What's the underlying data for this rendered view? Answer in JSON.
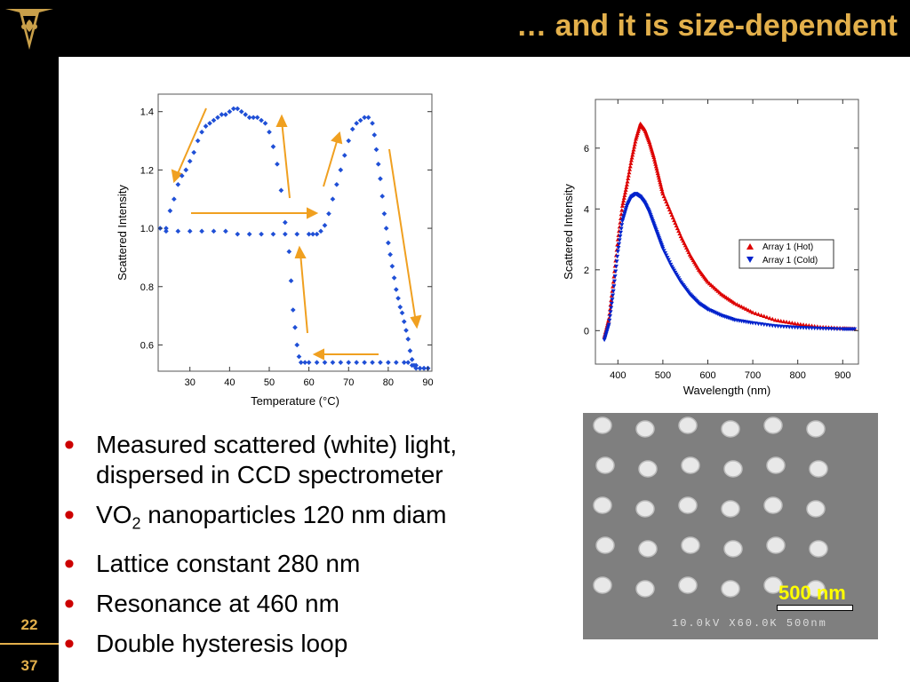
{
  "slide": {
    "title": "… and it is size-dependent",
    "page_numbers": [
      "22",
      "37"
    ]
  },
  "bullets": [
    {
      "text": "Measured scattered (white) light, dispersed in CCD spectrometer"
    },
    {
      "pre": "VO",
      "sub": "2",
      "post": " nanoparticles 120 nm diam"
    },
    {
      "text": "Lattice constant 280 nm"
    },
    {
      "text": "Resonance at 460 nm"
    },
    {
      "text": "Double hysteresis loop"
    }
  ],
  "sem_image": {
    "scale_label": "500 nm",
    "instrument_text": "10.0kV X60.0K 500nm"
  },
  "colors": {
    "accent": "#e3b04b",
    "bullet": "#cc0000",
    "hot": "#dd0000",
    "cold": "#0022cc",
    "points": "#1f4fd6",
    "arrow": "#f0a020"
  },
  "chart_data": [
    {
      "type": "scatter",
      "xlabel": "Temperature (°C)",
      "ylabel": "Scattered Intensity",
      "xlim": [
        22,
        91
      ],
      "ylim": [
        0.51,
        1.46
      ],
      "xticks": [
        30,
        40,
        50,
        60,
        70,
        80,
        90
      ],
      "yticks": [
        0.6,
        0.8,
        1.0,
        1.2,
        1.4
      ],
      "ytick_labels": [
        "0.6",
        "0.8",
        "1.0",
        "1.2",
        "1.4"
      ],
      "series": [
        {
          "x": [
            22.5,
            24,
            25,
            26,
            27,
            28,
            29,
            30,
            31,
            32,
            33,
            34,
            35,
            36,
            37,
            38,
            39,
            40,
            41,
            42,
            43,
            44,
            45,
            46,
            47,
            48,
            49,
            50,
            51,
            52,
            53,
            54,
            55
          ],
          "y": [
            1.0,
            1.0,
            1.06,
            1.1,
            1.15,
            1.18,
            1.2,
            1.23,
            1.26,
            1.3,
            1.33,
            1.35,
            1.36,
            1.37,
            1.38,
            1.39,
            1.39,
            1.4,
            1.41,
            1.41,
            1.4,
            1.39,
            1.38,
            1.38,
            1.38,
            1.37,
            1.36,
            1.33,
            1.28,
            1.22,
            1.13,
            1.02,
            0.92
          ]
        },
        {
          "x": [
            55.5,
            56,
            56.5,
            57,
            57.5,
            58,
            59,
            60,
            62,
            64,
            66,
            68,
            70,
            72,
            74,
            76,
            78,
            80,
            82,
            84,
            85,
            86,
            87,
            88,
            89,
            90
          ],
          "y": [
            0.82,
            0.72,
            0.66,
            0.6,
            0.56,
            0.54,
            0.54,
            0.54,
            0.54,
            0.54,
            0.54,
            0.54,
            0.54,
            0.54,
            0.54,
            0.54,
            0.54,
            0.54,
            0.54,
            0.54,
            0.54,
            0.53,
            0.53,
            0.52,
            0.52,
            0.52
          ]
        },
        {
          "x": [
            24,
            27,
            30,
            33,
            36,
            39,
            42,
            45,
            48,
            51,
            54,
            57,
            60,
            61,
            62,
            63,
            64,
            65,
            66,
            67,
            68,
            69,
            70,
            71,
            72,
            73,
            74,
            75,
            76
          ],
          "y": [
            0.99,
            0.99,
            0.99,
            0.99,
            0.99,
            0.99,
            0.98,
            0.98,
            0.98,
            0.98,
            0.98,
            0.98,
            0.98,
            0.98,
            0.98,
            0.99,
            1.01,
            1.05,
            1.1,
            1.15,
            1.2,
            1.25,
            1.3,
            1.34,
            1.36,
            1.37,
            1.38,
            1.38,
            1.36
          ]
        },
        {
          "x": [
            76.5,
            77,
            77.5,
            78,
            78.5,
            79,
            79.5,
            80,
            80.5,
            81,
            81.5,
            82,
            82.5,
            83,
            83.5,
            84,
            84.5,
            85,
            85.5,
            86,
            86.5,
            87,
            88,
            89,
            90
          ],
          "y": [
            1.32,
            1.27,
            1.22,
            1.17,
            1.11,
            1.05,
            1.0,
            0.95,
            0.91,
            0.87,
            0.83,
            0.79,
            0.76,
            0.73,
            0.71,
            0.68,
            0.65,
            0.62,
            0.58,
            0.55,
            0.53,
            0.52,
            0.52,
            0.52,
            0.52
          ]
        }
      ]
    },
    {
      "type": "scatter",
      "xlabel": "Wavelength (nm)",
      "ylabel": "Scattered Intensity",
      "xlim": [
        350,
        935
      ],
      "ylim": [
        -1.1,
        7.6
      ],
      "xticks": [
        400,
        500,
        600,
        700,
        800,
        900
      ],
      "yticks": [
        0,
        2,
        4,
        6
      ],
      "legend": "right",
      "series": [
        {
          "name": "Array 1 (Hot)",
          "x": [
            370,
            380,
            390,
            400,
            410,
            420,
            430,
            440,
            450,
            460,
            470,
            480,
            490,
            500,
            520,
            540,
            560,
            580,
            600,
            630,
            660,
            700,
            750,
            800,
            850,
            900,
            930
          ],
          "y": [
            -0.2,
            0.4,
            1.6,
            3.0,
            4.1,
            4.8,
            5.6,
            6.3,
            6.8,
            6.6,
            6.2,
            5.7,
            5.1,
            4.5,
            3.8,
            3.1,
            2.5,
            2.0,
            1.6,
            1.2,
            0.9,
            0.6,
            0.35,
            0.22,
            0.12,
            0.08,
            0.06
          ]
        },
        {
          "name": "Array 1 (Cold)",
          "x": [
            370,
            380,
            390,
            400,
            410,
            420,
            430,
            440,
            450,
            460,
            470,
            480,
            490,
            500,
            520,
            540,
            560,
            580,
            600,
            630,
            660,
            700,
            750,
            800,
            850,
            900,
            930
          ],
          "y": [
            -0.3,
            0.2,
            1.3,
            2.6,
            3.6,
            4.1,
            4.4,
            4.5,
            4.4,
            4.2,
            3.9,
            3.5,
            3.1,
            2.7,
            2.1,
            1.6,
            1.2,
            0.9,
            0.7,
            0.5,
            0.35,
            0.25,
            0.15,
            0.1,
            0.07,
            0.05,
            0.05
          ]
        }
      ]
    }
  ]
}
